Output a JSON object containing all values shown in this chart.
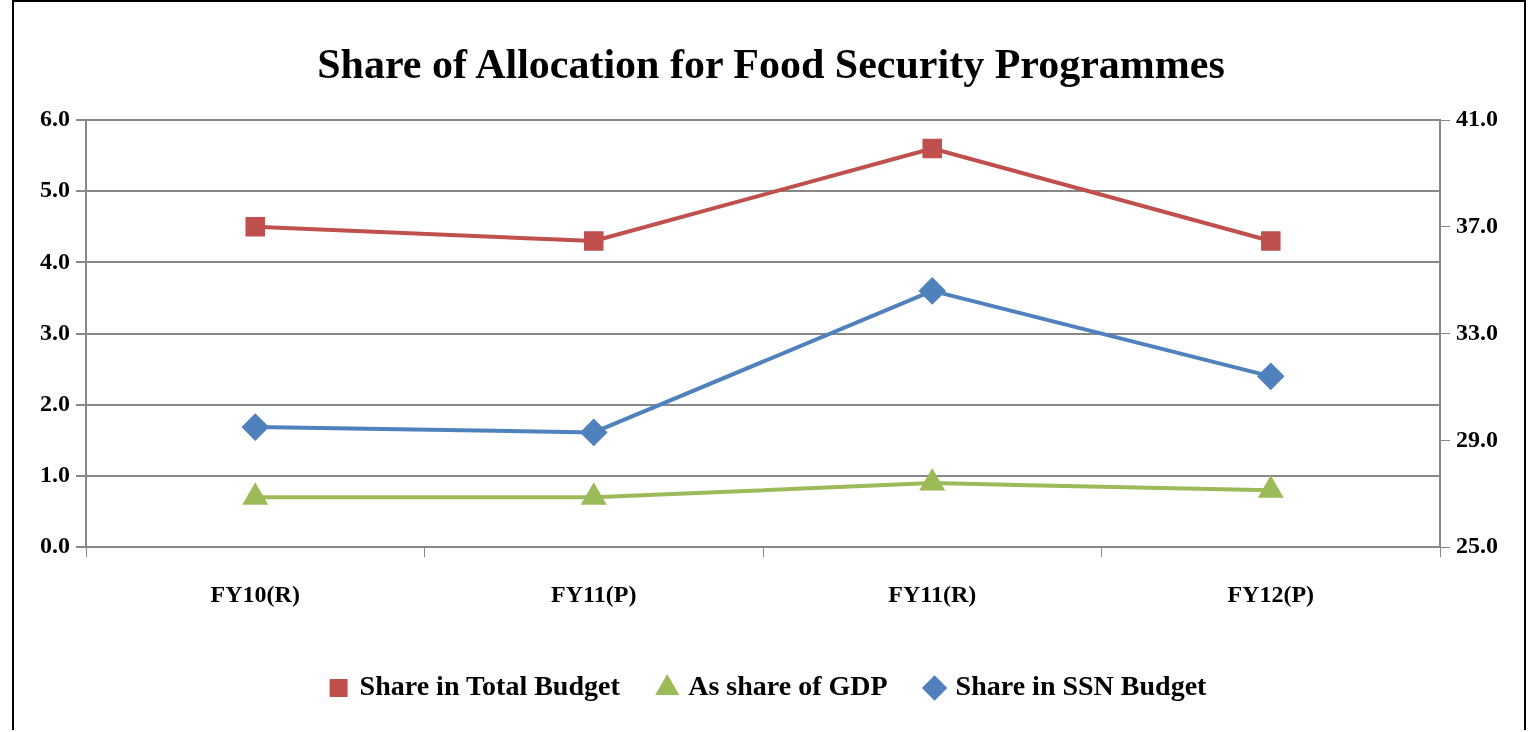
{
  "chart_data": {
    "type": "line",
    "title": "Share of Allocation for Food Security Programmes",
    "categories": [
      "FY10(R)",
      "FY11(P)",
      "FY11(R)",
      "FY12(P)"
    ],
    "series": [
      {
        "name": "Share in Total Budget",
        "color": "#c0504d",
        "marker": "square",
        "values": [
          4.5,
          4.3,
          5.6,
          4.3
        ]
      },
      {
        "name": "As share of GDP",
        "color": "#9bbb59",
        "marker": "triangle",
        "values": [
          0.7,
          0.7,
          0.9,
          0.8
        ]
      },
      {
        "name": "Share in SSN Budget",
        "color": "#4f81bd",
        "marker": "diamond",
        "axis": "y2",
        "values": [
          29.5,
          29.3,
          34.6,
          31.4
        ]
      }
    ],
    "ylim": [
      0,
      6
    ],
    "yticks": [
      {
        "value": 0,
        "label": "0.0"
      },
      {
        "value": 1,
        "label": "1.0"
      },
      {
        "value": 2,
        "label": "2.0"
      },
      {
        "value": 3,
        "label": "3.0"
      },
      {
        "value": 4,
        "label": "4.0"
      },
      {
        "value": 5,
        "label": "5.0"
      },
      {
        "value": 6,
        "label": "6.0"
      }
    ],
    "y2lim": [
      25,
      41
    ],
    "y2ticks": [
      {
        "value": 25,
        "label": "25.0"
      },
      {
        "value": 29,
        "label": "29.0"
      },
      {
        "value": 33,
        "label": "33.0"
      },
      {
        "value": 37,
        "label": "37.0"
      },
      {
        "value": 41,
        "label": "41.0"
      }
    ],
    "grid": "y",
    "legend": "bottom",
    "line_style": "solid"
  }
}
